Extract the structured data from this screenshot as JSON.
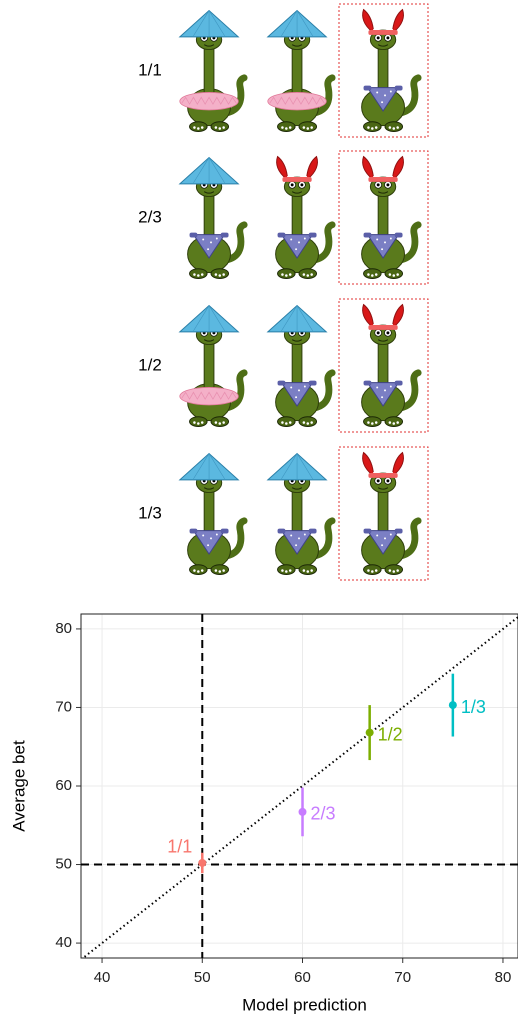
{
  "panel_labels": [
    "1/1",
    "2/3",
    "1/2",
    "1/3"
  ],
  "chart_data": {
    "type": "scatter",
    "xlabel": "Model prediction",
    "ylabel": "Average bet",
    "xlim": [
      37.9,
      81.5
    ],
    "ylim": [
      38.1,
      81.9
    ],
    "xticks": [
      40,
      50,
      60,
      70,
      80
    ],
    "yticks": [
      40,
      50,
      60,
      70,
      80
    ],
    "grid": true,
    "vlines": [
      50
    ],
    "hlines": [
      50
    ],
    "identity_line": true,
    "series": [
      {
        "name": "1/1",
        "color": "#F8766D",
        "x": [
          50
        ],
        "values": [
          50.2
        ],
        "errors": [
          1.3
        ]
      },
      {
        "name": "2/3",
        "color": "#C77CFF",
        "x": [
          60
        ],
        "values": [
          56.7
        ],
        "errors": [
          3.1
        ]
      },
      {
        "name": "1/2",
        "color": "#7CAE00",
        "x": [
          66.7
        ],
        "values": [
          66.8
        ],
        "errors": [
          3.5
        ]
      },
      {
        "name": "1/3",
        "color": "#00BFC4",
        "x": [
          75
        ],
        "values": [
          70.3
        ],
        "errors": [
          4
        ]
      }
    ]
  }
}
